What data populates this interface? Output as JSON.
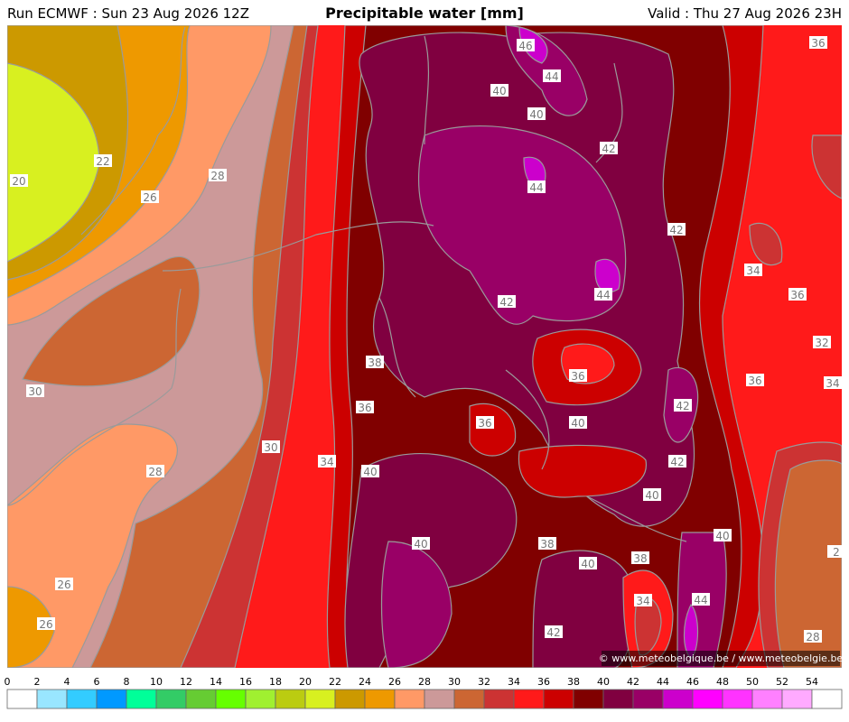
{
  "header": {
    "run": "Run ECMWF : Sun 23 Aug 2026 12Z",
    "title": "Precipitable water [mm]",
    "valid": "Valid : Thu 27 Aug 2026 23H"
  },
  "contour_labels": [
    46,
    44,
    40,
    40,
    42,
    44,
    36,
    42,
    34,
    36,
    44,
    42,
    32,
    38,
    36,
    36,
    34,
    42,
    36,
    36,
    40,
    30,
    42,
    34,
    40,
    28,
    40,
    40,
    40,
    38,
    38,
    40,
    2,
    34,
    44,
    26,
    26,
    42,
    28,
    30,
    20,
    22,
    26,
    28
  ],
  "colorbar": {
    "ticks": [
      0,
      2,
      4,
      6,
      8,
      10,
      12,
      14,
      16,
      18,
      20,
      22,
      24,
      26,
      28,
      30,
      32,
      34,
      36,
      38,
      40,
      42,
      44,
      46,
      48,
      50,
      52,
      54
    ],
    "colors": [
      "#ffffff",
      "#99e6ff",
      "#33ccff",
      "#0099ff",
      "#00ff99",
      "#33cc66",
      "#66cc33",
      "#66ff00",
      "#a0f030",
      "#bbcc11",
      "#d8f020",
      "#cc9900",
      "#ee9900",
      "#ff9966",
      "#cc9999",
      "#cc6633",
      "#cc3333",
      "#ff1a1a",
      "#cc0000",
      "#800000",
      "#800040",
      "#990066",
      "#cc00cc",
      "#ff00ff",
      "#ff33ff",
      "#ff80ff",
      "#ffaaff",
      "#ffffff"
    ]
  },
  "footer": {
    "credit": "© www.meteobelgique.be / www.meteobelgie.be"
  }
}
